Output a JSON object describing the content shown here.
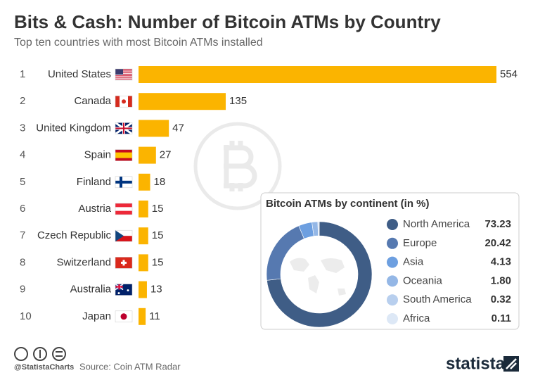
{
  "chart_data": [
    {
      "type": "bar",
      "title": "Bits & Cash: Number of Bitcoin ATMs by Country",
      "subtitle": "Top ten countries with most Bitcoin ATMs installed",
      "ranks": [
        1,
        2,
        3,
        4,
        5,
        6,
        7,
        8,
        9,
        10
      ],
      "categories": [
        "United States",
        "Canada",
        "United Kingdom",
        "Spain",
        "Finland",
        "Austria",
        "Czech Republic",
        "Switzerland",
        "Australia",
        "Japan"
      ],
      "values": [
        554,
        135,
        47,
        27,
        18,
        15,
        15,
        15,
        13,
        11
      ],
      "color": "#fbb400"
    },
    {
      "type": "pie",
      "title": "Bitcoin ATMs by continent (in %)",
      "categories": [
        "North America",
        "Europe",
        "Asia",
        "Oceania",
        "South America",
        "Africa"
      ],
      "values": [
        73.23,
        20.42,
        4.13,
        1.8,
        0.32,
        0.11
      ],
      "value_labels": [
        "73.23",
        "20.42",
        "4.13",
        "1.80",
        "0.32",
        "0.11"
      ],
      "colors": [
        "#3f5d86",
        "#5679b0",
        "#6d9fe0",
        "#94b7e6",
        "#b8cfee",
        "#dde8f6"
      ]
    }
  ],
  "footer": {
    "handle": "@StatistaCharts",
    "source": "Source: Coin ATM Radar",
    "logo": "statista"
  }
}
